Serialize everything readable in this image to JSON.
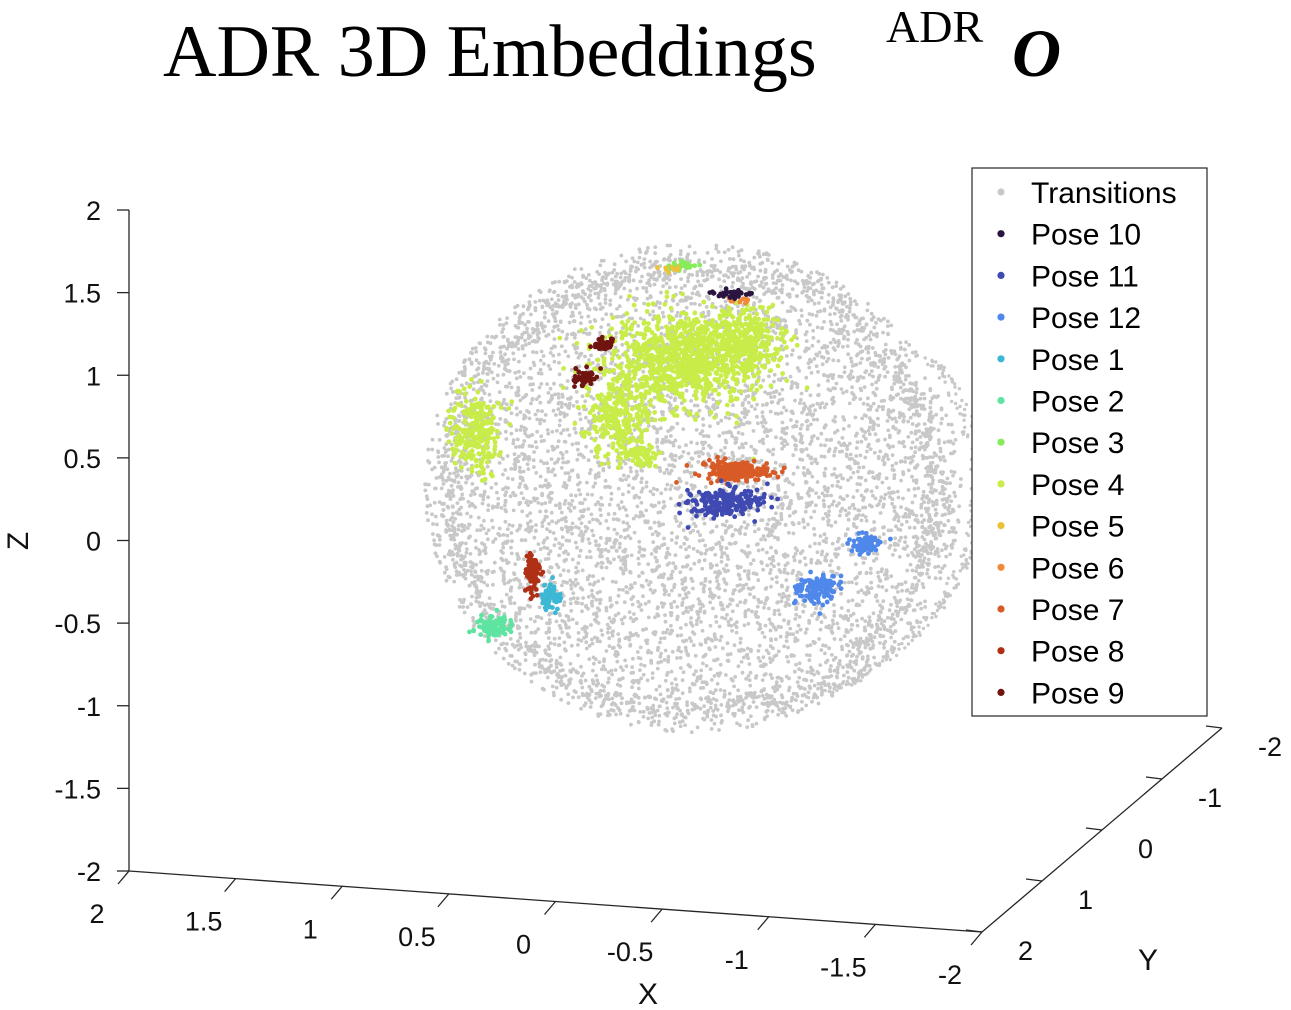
{
  "title": "ADR 3D Embeddings",
  "title_superscript": "ADR",
  "title_symbol": "O",
  "chart_data": {
    "type": "scatter",
    "projection": "3d",
    "xlabel": "X",
    "ylabel": "Y",
    "zlabel": "Z",
    "xlim": [
      -2,
      2
    ],
    "ylim": [
      -2,
      2
    ],
    "zlim": [
      -2,
      2
    ],
    "x_ticks": [
      "2",
      "1.5",
      "1",
      "0.5",
      "0",
      "-0.5",
      "-1",
      "-1.5",
      "-2"
    ],
    "y_ticks": [
      "-2",
      "-1",
      "0",
      "1",
      "2"
    ],
    "z_ticks": [
      "2",
      "1.5",
      "1",
      "0.5",
      "0",
      "-0.5",
      "-1",
      "-1.5",
      "-2"
    ],
    "grid": false,
    "legend_position": "top-right",
    "series": [
      {
        "name": "Transitions",
        "color": "#c8c8c8"
      },
      {
        "name": "Pose 10",
        "color": "#2b1540"
      },
      {
        "name": "Pose 11",
        "color": "#3e4ab2"
      },
      {
        "name": "Pose 12",
        "color": "#4f88ea"
      },
      {
        "name": "Pose 1",
        "color": "#3cb8d4"
      },
      {
        "name": "Pose 2",
        "color": "#5ee4a0"
      },
      {
        "name": "Pose 3",
        "color": "#86ec5a"
      },
      {
        "name": "Pose 4",
        "color": "#c8ec48"
      },
      {
        "name": "Pose 5",
        "color": "#eac23a"
      },
      {
        "name": "Pose 6",
        "color": "#f08a3a"
      },
      {
        "name": "Pose 7",
        "color": "#d85a26"
      },
      {
        "name": "Pose 8",
        "color": "#b03016"
      },
      {
        "name": "Pose 9",
        "color": "#701410"
      }
    ]
  }
}
